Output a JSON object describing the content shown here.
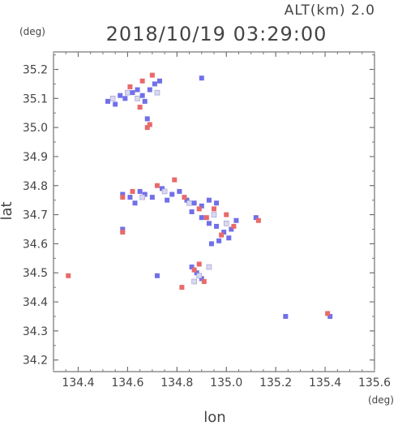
{
  "header": {
    "altitude_label": "ALT(km)  2.0",
    "timestamp": "2018/10/19 03:29:00"
  },
  "chart_data": {
    "type": "scatter",
    "title": "2018/10/19 03:29:00",
    "xlabel": "lon",
    "ylabel": "lat",
    "x_unit": "(deg)",
    "y_unit": "(deg)",
    "xlim": [
      134.3,
      135.6
    ],
    "ylim": [
      34.16,
      35.26
    ],
    "x_ticks": [
      134.4,
      134.6,
      134.8,
      135.0,
      135.2,
      135.4,
      135.6
    ],
    "y_ticks": [
      34.2,
      34.3,
      34.4,
      34.5,
      34.6,
      34.7,
      34.8,
      34.9,
      35.0,
      35.1,
      35.2
    ],
    "grid": false,
    "series": [
      {
        "color": "#7070e8",
        "points": [
          [
            134.52,
            35.09
          ],
          [
            134.55,
            35.08
          ],
          [
            134.57,
            35.11
          ],
          [
            134.59,
            35.1
          ],
          [
            134.62,
            35.12
          ],
          [
            134.64,
            35.13
          ],
          [
            134.66,
            35.11
          ],
          [
            134.67,
            35.09
          ],
          [
            134.69,
            35.13
          ],
          [
            134.71,
            35.15
          ],
          [
            134.73,
            35.16
          ],
          [
            134.68,
            35.03
          ],
          [
            134.9,
            35.17
          ],
          [
            134.58,
            34.77
          ],
          [
            134.61,
            34.76
          ],
          [
            134.63,
            34.74
          ],
          [
            134.65,
            34.78
          ],
          [
            134.67,
            34.77
          ],
          [
            134.7,
            34.76
          ],
          [
            134.74,
            34.79
          ],
          [
            134.76,
            34.75
          ],
          [
            134.78,
            34.77
          ],
          [
            134.81,
            34.78
          ],
          [
            134.84,
            34.75
          ],
          [
            134.87,
            34.74
          ],
          [
            134.9,
            34.73
          ],
          [
            134.93,
            34.75
          ],
          [
            134.96,
            34.74
          ],
          [
            134.86,
            34.71
          ],
          [
            134.9,
            34.69
          ],
          [
            134.93,
            34.67
          ],
          [
            134.96,
            34.66
          ],
          [
            134.99,
            34.64
          ],
          [
            135.02,
            34.65
          ],
          [
            135.04,
            34.68
          ],
          [
            135.01,
            34.62
          ],
          [
            134.97,
            34.61
          ],
          [
            134.94,
            34.6
          ],
          [
            134.86,
            34.52
          ],
          [
            134.88,
            34.5
          ],
          [
            134.9,
            34.48
          ],
          [
            134.72,
            34.49
          ],
          [
            134.58,
            34.65
          ],
          [
            135.24,
            34.35
          ],
          [
            135.42,
            34.35
          ],
          [
            135.12,
            34.69
          ]
        ]
      },
      {
        "color": "#e86a6a",
        "points": [
          [
            134.61,
            35.14
          ],
          [
            134.66,
            35.16
          ],
          [
            134.7,
            35.18
          ],
          [
            134.68,
            35.0
          ],
          [
            134.69,
            35.01
          ],
          [
            134.65,
            35.07
          ],
          [
            134.58,
            34.76
          ],
          [
            134.62,
            34.78
          ],
          [
            134.72,
            34.8
          ],
          [
            134.79,
            34.82
          ],
          [
            134.83,
            34.76
          ],
          [
            134.89,
            34.72
          ],
          [
            134.95,
            34.72
          ],
          [
            135.0,
            34.7
          ],
          [
            134.92,
            34.69
          ],
          [
            135.03,
            34.66
          ],
          [
            134.98,
            34.63
          ],
          [
            134.87,
            34.51
          ],
          [
            134.91,
            34.47
          ],
          [
            134.89,
            34.53
          ],
          [
            134.82,
            34.45
          ],
          [
            134.36,
            34.49
          ],
          [
            134.58,
            34.64
          ],
          [
            135.13,
            34.68
          ],
          [
            135.41,
            34.36
          ]
        ]
      },
      {
        "color": "#d8d8f0",
        "points": [
          [
            134.54,
            35.1
          ],
          [
            134.6,
            35.12
          ],
          [
            134.64,
            35.1
          ],
          [
            134.72,
            35.12
          ],
          [
            134.66,
            34.76
          ],
          [
            134.75,
            34.78
          ],
          [
            134.85,
            34.74
          ],
          [
            134.95,
            34.7
          ],
          [
            135.0,
            34.67
          ],
          [
            134.89,
            34.49
          ],
          [
            134.87,
            34.47
          ],
          [
            134.93,
            34.52
          ]
        ]
      }
    ]
  }
}
